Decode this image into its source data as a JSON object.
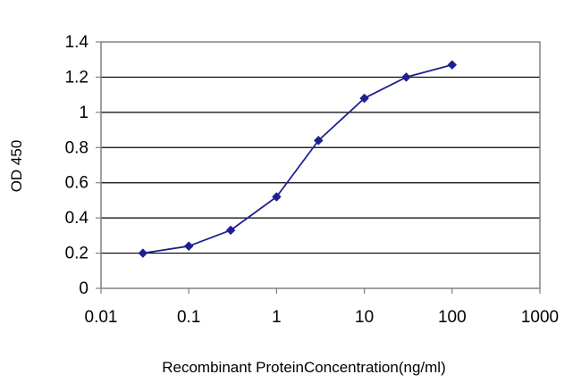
{
  "chart_data": {
    "type": "line",
    "title": "",
    "xlabel": "Recombinant ProteinConcentration(ng/ml)",
    "ylabel": "OD 450",
    "xscale": "log",
    "xlim": [
      0.01,
      1000
    ],
    "ylim": [
      0,
      1.4
    ],
    "x_ticks": [
      "0.01",
      "0.1",
      "1",
      "10",
      "100",
      "1000"
    ],
    "y_ticks": [
      "0",
      "0.2",
      "0.4",
      "0.6",
      "0.8",
      "1",
      "1.2",
      "1.4"
    ],
    "grid": "horizontal",
    "legend": "none",
    "series": [
      {
        "color": "#1f1f8f",
        "marker": "diamond",
        "x": [
          0.03,
          0.1,
          0.3,
          1,
          3,
          10,
          30,
          100
        ],
        "y": [
          0.2,
          0.24,
          0.33,
          0.52,
          0.84,
          1.08,
          1.2,
          1.27
        ]
      }
    ]
  }
}
